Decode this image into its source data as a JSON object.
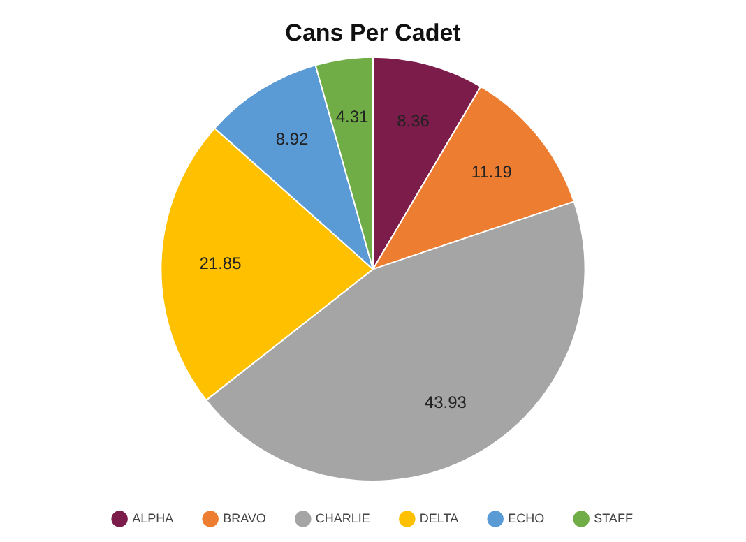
{
  "chart_data": {
    "type": "pie",
    "title": "Cans Per Cadet",
    "categories": [
      "ALPHA",
      "BRAVO",
      "CHARLIE",
      "DELTA",
      "ECHO",
      "STAFF"
    ],
    "values": [
      8.36,
      11.19,
      43.93,
      21.85,
      8.92,
      4.31
    ],
    "colors": [
      "#7b1c4a",
      "#ed7d31",
      "#a5a5a5",
      "#ffc000",
      "#5b9bd5",
      "#70ad47"
    ],
    "data_labels": true,
    "legend": "bottom"
  }
}
